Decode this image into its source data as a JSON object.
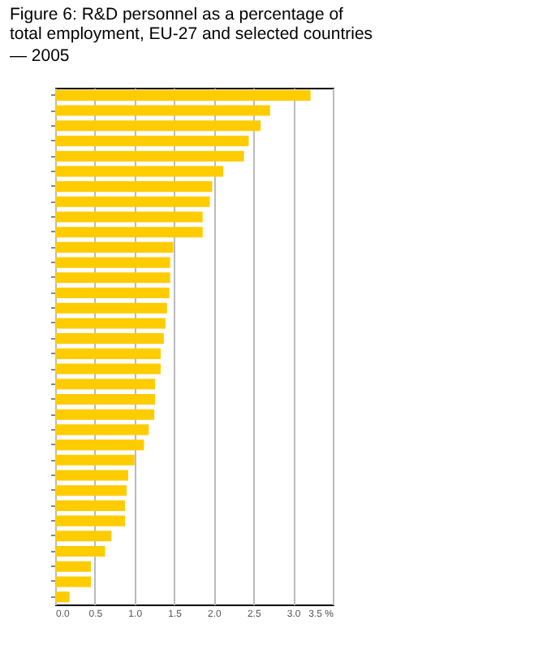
{
  "chart_data": {
    "type": "bar",
    "orientation": "horizontal",
    "title": [
      "Figure 6: R&D personnel as a percentage of",
      "total employment, EU-27 and selected countries"
    ],
    "subtitle": "— 2005",
    "categories": [
      null,
      null,
      null,
      null,
      null,
      null,
      null,
      null,
      null,
      null,
      null,
      null,
      null,
      null,
      null,
      null,
      null,
      null,
      null,
      null,
      null,
      null,
      null,
      null,
      null,
      null,
      null,
      null,
      null,
      null,
      null,
      null,
      null,
      null
    ],
    "values": [
      3.22,
      2.71,
      2.59,
      2.44,
      2.38,
      2.12,
      1.98,
      1.95,
      1.86,
      1.86,
      1.49,
      1.45,
      1.45,
      1.44,
      1.41,
      1.39,
      1.37,
      1.33,
      1.33,
      1.26,
      1.26,
      1.25,
      1.18,
      1.12,
      1.0,
      0.92,
      0.9,
      0.88,
      0.88,
      0.71,
      0.63,
      0.45,
      0.45,
      0.18
    ],
    "color": "#ffcc00",
    "xlim": [
      0,
      3.5
    ],
    "xticks": [
      {
        "value": 0,
        "label": "0.0"
      },
      {
        "value": 0.5,
        "label": "0.5"
      },
      {
        "value": 1,
        "label": "1.0"
      },
      {
        "value": 1.5,
        "label": "1.5"
      },
      {
        "value": 2,
        "label": "2.0"
      },
      {
        "value": 2.5,
        "label": "2.5"
      },
      {
        "value": 3,
        "label": "3.0"
      },
      {
        "value": 3.5,
        "label": "3.5 %"
      }
    ],
    "grid": "x"
  }
}
